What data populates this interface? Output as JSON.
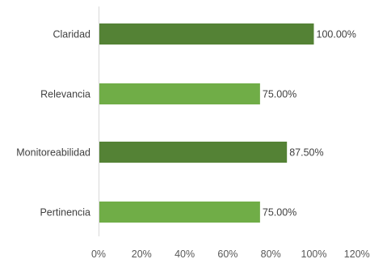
{
  "chart_data": {
    "type": "bar",
    "orientation": "horizontal",
    "title": "",
    "xlabel": "",
    "ylabel": "",
    "categories": [
      "Claridad",
      "Relevancia",
      "Monitoreabilidad",
      "Pertinencia"
    ],
    "values": [
      1.0,
      0.75,
      0.875,
      0.75
    ],
    "data_labels": [
      "100.00%",
      "75.00%",
      "87.50%",
      "75.00%"
    ],
    "bar_colors": [
      "#548235",
      "#70ad47",
      "#548235",
      "#70ad47"
    ],
    "xlim": [
      0,
      1.2
    ],
    "x_ticks": [
      0,
      0.2,
      0.4,
      0.6,
      0.8,
      1.0,
      1.2
    ],
    "x_tick_labels": [
      "0%",
      "20%",
      "40%",
      "60%",
      "80%",
      "100%",
      "120%"
    ],
    "grid": false,
    "legend": "none",
    "axis_color": "#d9d9d9"
  }
}
